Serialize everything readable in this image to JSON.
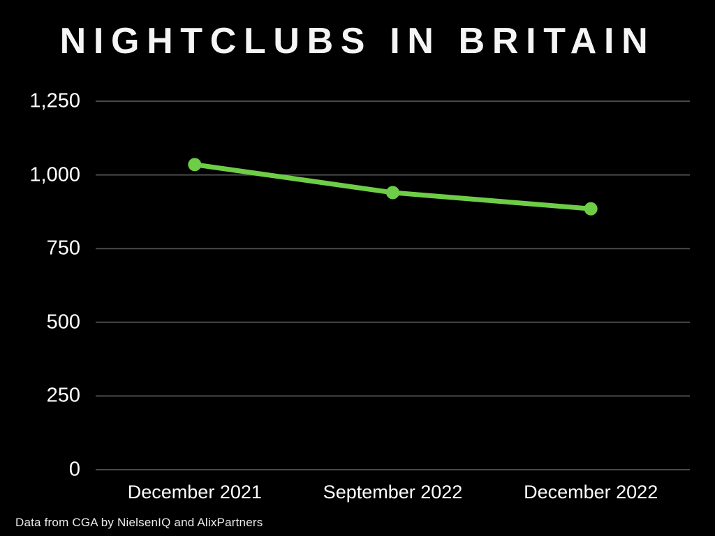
{
  "title": "NIGHTCLUBS IN BRITAIN",
  "source_note": "Data from CGA by NielsenIQ and AlixPartners",
  "colors": {
    "background": "#000000",
    "accent_green": "#6ECD46",
    "gridline": "#4a4a4a",
    "text": "#ffffff"
  },
  "chart_data": {
    "type": "line",
    "title": "NIGHTCLUBS IN BRITAIN",
    "categories": [
      "December 2021",
      "September 2022",
      "December 2022"
    ],
    "series": [
      {
        "name": "Nightclubs in Britain",
        "values": [
          1035,
          940,
          885
        ]
      }
    ],
    "xlabel": "",
    "ylabel": "",
    "ylim": [
      0,
      1250
    ],
    "yticks": [
      0,
      250,
      500,
      750,
      1000,
      1250
    ],
    "ytick_labels": [
      "0",
      "250",
      "500",
      "750",
      "1,000",
      "1,250"
    ],
    "grid": true,
    "legend_position": "none",
    "marker": "circle",
    "line_width": 7,
    "marker_radius": 9.5
  }
}
